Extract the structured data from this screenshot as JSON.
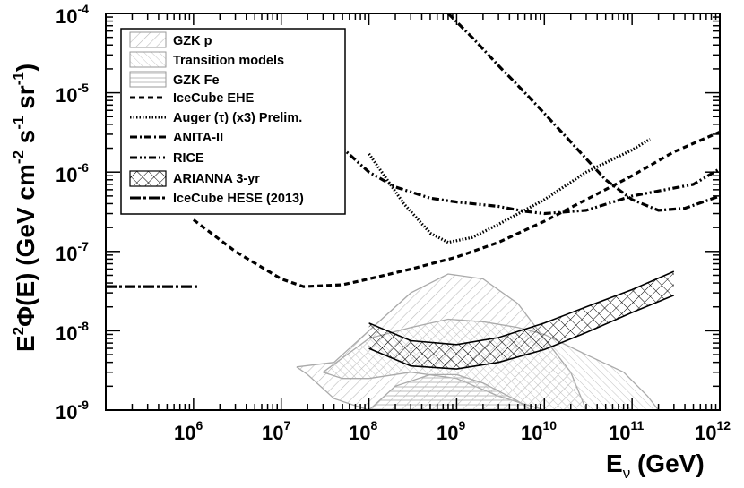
{
  "chart_data": {
    "type": "line",
    "log_x": true,
    "log_y": true,
    "xlim": [
      100000,
      1000000000000
    ],
    "ylim": [
      1e-09,
      0.0001
    ],
    "x_ticks": [
      {
        "exp": 6,
        "base": "10",
        "sup": "6"
      },
      {
        "exp": 7,
        "base": "10",
        "sup": "7"
      },
      {
        "exp": 8,
        "base": "10",
        "sup": "8"
      },
      {
        "exp": 9,
        "base": "10",
        "sup": "9"
      },
      {
        "exp": 10,
        "base": "10",
        "sup": "10"
      },
      {
        "exp": 11,
        "base": "10",
        "sup": "11"
      },
      {
        "exp": 12,
        "base": "10",
        "sup": "12"
      }
    ],
    "y_ticks": [
      {
        "exp": -4,
        "base": "10",
        "sup": "-4"
      },
      {
        "exp": -5,
        "base": "10",
        "sup": "-5"
      },
      {
        "exp": -6,
        "base": "10",
        "sup": "-6"
      },
      {
        "exp": -7,
        "base": "10",
        "sup": "-7"
      },
      {
        "exp": -8,
        "base": "10",
        "sup": "-8"
      },
      {
        "exp": -9,
        "base": "10",
        "sup": "-9"
      }
    ],
    "xlabel": {
      "main": "E",
      "sub": "ν",
      "unit": " (GeV)"
    },
    "ylabel": {
      "p1": "E",
      "s1": "2",
      "p2": "Φ(E) (GeV cm",
      "s2": "-2",
      "p3": " s",
      "s3": "-1",
      "p4": " sr",
      "s4": "-1",
      "p5": ")"
    },
    "legend": [
      {
        "label": "GZK p",
        "style": "hatch-diag"
      },
      {
        "label": "Transition models",
        "style": "hatch-diag-fine"
      },
      {
        "label": "GZK Fe",
        "style": "hatch-horizontal"
      },
      {
        "label": "IceCube EHE",
        "style": "dashed"
      },
      {
        "label": "Auger (τ) (x3) Prelim.",
        "style": "dotted"
      },
      {
        "label": "ANITA-II",
        "style": "dash-dot"
      },
      {
        "label": "RICE",
        "style": "dash-dot-dot"
      },
      {
        "label": "ARIANNA 3-yr",
        "style": "crosshatch"
      },
      {
        "label": "IceCube HESE (2013)",
        "style": "long-dash-dot"
      }
    ],
    "series": [
      {
        "name": "IceCube EHE",
        "style": "dashed",
        "points": [
          [
            1000000.0,
            2.5e-07
          ],
          [
            3000000.0,
            1e-07
          ],
          [
            10000000.0,
            4.5e-08
          ],
          [
            18000000.0,
            3.6e-08
          ],
          [
            50000000.0,
            3.8e-08
          ],
          [
            100000000.0,
            4.5e-08
          ],
          [
            300000000.0,
            6e-08
          ],
          [
            1000000000.0,
            8.5e-08
          ],
          [
            3000000000.0,
            1.3e-07
          ],
          [
            10000000000.0,
            2.4e-07
          ],
          [
            30000000000.0,
            4.5e-07
          ],
          [
            100000000000.0,
            9e-07
          ],
          [
            300000000000.0,
            1.8e-06
          ],
          [
            1000000000000.0,
            3.2e-06
          ]
        ]
      },
      {
        "name": "Auger (τ) (x3) Prelim.",
        "style": "dotted",
        "points": [
          [
            100000000.0,
            1.7e-06
          ],
          [
            150000000.0,
            9e-07
          ],
          [
            250000000.0,
            4e-07
          ],
          [
            500000000.0,
            1.7e-07
          ],
          [
            800000000.0,
            1.3e-07
          ],
          [
            1500000000.0,
            1.5e-07
          ],
          [
            3000000000.0,
            2.2e-07
          ],
          [
            10000000000.0,
            4.5e-07
          ],
          [
            30000000000.0,
            1e-06
          ],
          [
            100000000000.0,
            1.9e-06
          ],
          [
            160000000000.0,
            2.6e-06
          ]
        ]
      },
      {
        "name": "ANITA-II",
        "style": "dash-dot",
        "points": [
          [
            800000000.0,
            0.0001
          ],
          [
            1500000000.0,
            5e-05
          ],
          [
            3000000000.0,
            2.2e-05
          ],
          [
            6000000000.0,
            1e-05
          ],
          [
            10000000000.0,
            5.5e-06
          ],
          [
            20000000000.0,
            2.4e-06
          ],
          [
            50000000000.0,
            8e-07
          ],
          [
            100000000000.0,
            4.5e-07
          ],
          [
            200000000000.0,
            3.3e-07
          ],
          [
            400000000000.0,
            3.5e-07
          ],
          [
            1000000000000.0,
            5e-07
          ]
        ]
      },
      {
        "name": "RICE",
        "style": "dash-dot-dot",
        "points": [
          [
            30000000.0,
            3.5e-06
          ],
          [
            50000000.0,
            2e-06
          ],
          [
            100000000.0,
            1e-06
          ],
          [
            200000000.0,
            6.5e-07
          ],
          [
            500000000.0,
            4.7e-07
          ],
          [
            1000000000.0,
            4.2e-07
          ],
          [
            3000000000.0,
            3.7e-07
          ],
          [
            6000000000.0,
            3.2e-07
          ],
          [
            10000000000.0,
            3e-07
          ],
          [
            30000000000.0,
            3.3e-07
          ],
          [
            100000000000.0,
            5e-07
          ],
          [
            500000000000.0,
            7e-07
          ],
          [
            1000000000000.0,
            1.1e-06
          ]
        ]
      },
      {
        "name": "IceCube HESE (2013)",
        "style": "long-dash-dot",
        "points": [
          [
            100000.0,
            3.6e-08
          ],
          [
            1100000.0,
            3.6e-08
          ]
        ]
      }
    ],
    "bands": [
      {
        "name": "GZK p",
        "upper": [
          [
            15000000.0,
            3.5e-09
          ],
          [
            40000000.0,
            4e-09
          ],
          [
            100000000.0,
            1e-08
          ],
          [
            300000000.0,
            3e-08
          ],
          [
            800000000.0,
            5.2e-08
          ],
          [
            2000000000.0,
            4.5e-08
          ],
          [
            5000000000.0,
            2.2e-08
          ],
          [
            10000000000.0,
            8e-09
          ],
          [
            20000000000.0,
            3e-09
          ],
          [
            30000000000.0,
            1e-09
          ]
        ],
        "lower": [
          [
            30000000000.0,
            1e-09
          ],
          [
            20000000000.0,
            1e-09
          ],
          [
            10000000000.0,
            1e-09
          ],
          [
            1000000000.0,
            1e-09
          ],
          [
            300000000.0,
            1e-09
          ],
          [
            100000000.0,
            1e-09
          ],
          [
            40000000.0,
            1.4e-09
          ],
          [
            20000000.0,
            2.8e-09
          ],
          [
            15000000.0,
            3.5e-09
          ]
        ]
      },
      {
        "name": "Transition models",
        "upper": [
          [
            30000000.0,
            3e-09
          ],
          [
            100000000.0,
            8e-09
          ],
          [
            300000000.0,
            1.1e-08
          ],
          [
            800000000.0,
            1.4e-08
          ],
          [
            2000000000.0,
            1.3e-08
          ],
          [
            5000000000.0,
            1.1e-08
          ],
          [
            10000000000.0,
            9e-09
          ],
          [
            30000000000.0,
            5e-09
          ],
          [
            80000000000.0,
            3e-09
          ],
          [
            150000000000.0,
            1.5e-09
          ],
          [
            200000000000.0,
            1e-09
          ]
        ],
        "lower": [
          [
            200000000000.0,
            1e-09
          ],
          [
            100000000000.0,
            1e-09
          ],
          [
            30000000000.0,
            1e-09
          ],
          [
            10000000000.0,
            1e-09
          ],
          [
            3000000000.0,
            1.5e-09
          ],
          [
            1000000000.0,
            2.5e-09
          ],
          [
            300000000.0,
            3e-09
          ],
          [
            100000000.0,
            2.5e-09
          ],
          [
            50000000.0,
            2.5e-09
          ],
          [
            30000000.0,
            3e-09
          ]
        ]
      },
      {
        "name": "GZK Fe",
        "upper": [
          [
            100000000.0,
            1e-09
          ],
          [
            200000000.0,
            2e-09
          ],
          [
            500000000.0,
            2.8e-09
          ],
          [
            1000000000.0,
            2.8e-09
          ],
          [
            2000000000.0,
            2.2e-09
          ],
          [
            5000000000.0,
            1.3e-09
          ],
          [
            7000000000.0,
            1e-09
          ]
        ],
        "lower": [
          [
            7000000000.0,
            1e-09
          ],
          [
            100000000.0,
            1e-09
          ]
        ]
      },
      {
        "name": "ARIANNA 3-yr",
        "crosshatch": true,
        "upper": [
          [
            100000000.0,
            1.25e-08
          ],
          [
            300000000.0,
            7.5e-09
          ],
          [
            1000000000.0,
            6.7e-09
          ],
          [
            3000000000.0,
            8.2e-09
          ],
          [
            10000000000.0,
            1.25e-08
          ],
          [
            30000000000.0,
            2e-08
          ],
          [
            100000000000.0,
            3.3e-08
          ],
          [
            300000000000.0,
            5.6e-08
          ]
        ],
        "lower": [
          [
            300000000000.0,
            2.8e-08
          ],
          [
            100000000000.0,
            1.7e-08
          ],
          [
            30000000000.0,
            9.5e-09
          ],
          [
            10000000000.0,
            5.8e-09
          ],
          [
            3000000000.0,
            4e-09
          ],
          [
            1000000000.0,
            3.3e-09
          ],
          [
            300000000.0,
            3.6e-09
          ],
          [
            100000000.0,
            6e-09
          ]
        ]
      }
    ]
  }
}
